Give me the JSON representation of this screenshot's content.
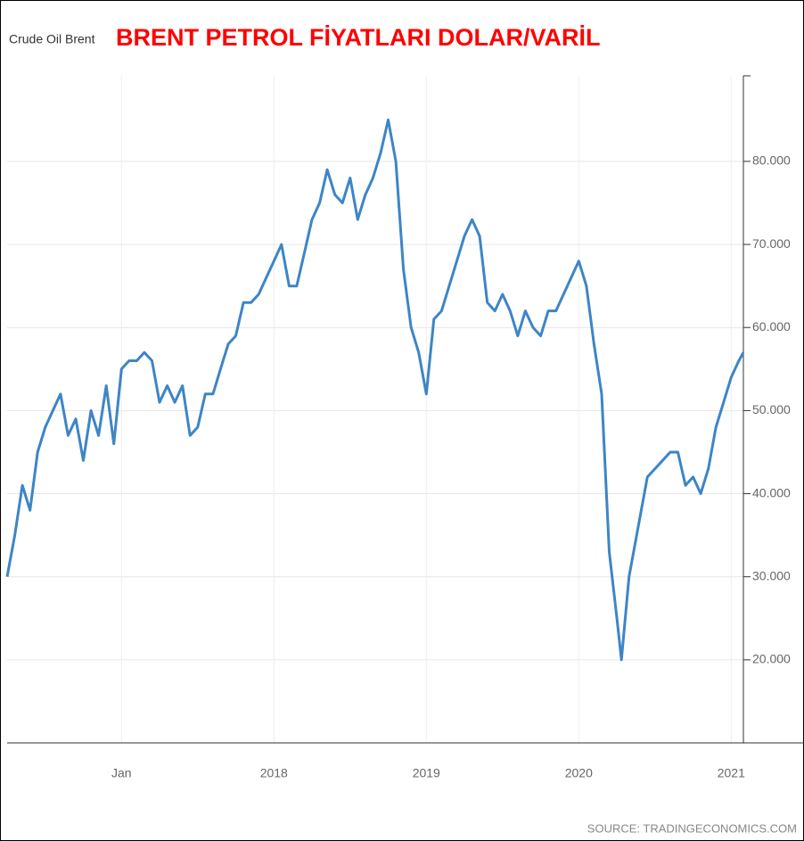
{
  "chart_data": {
    "type": "line",
    "subtitle": "Crude Oil Brent",
    "title": "BRENT PETROL FİYATLARI DOLAR/VARİL",
    "source": "SOURCE: TRADINGECONOMICS.COM",
    "x": [
      2016.25,
      2016.3,
      2016.35,
      2016.4,
      2016.45,
      2016.5,
      2016.55,
      2016.6,
      2016.65,
      2016.7,
      2016.75,
      2016.8,
      2016.85,
      2016.9,
      2016.95,
      2017.0,
      2017.05,
      2017.1,
      2017.15,
      2017.2,
      2017.25,
      2017.3,
      2017.35,
      2017.4,
      2017.45,
      2017.5,
      2017.55,
      2017.6,
      2017.65,
      2017.7,
      2017.75,
      2017.8,
      2017.85,
      2017.9,
      2017.95,
      2018.0,
      2018.05,
      2018.1,
      2018.15,
      2018.2,
      2018.25,
      2018.3,
      2018.35,
      2018.4,
      2018.45,
      2018.5,
      2018.55,
      2018.6,
      2018.65,
      2018.7,
      2018.75,
      2018.8,
      2018.85,
      2018.9,
      2018.95,
      2019.0,
      2019.05,
      2019.1,
      2019.15,
      2019.2,
      2019.25,
      2019.3,
      2019.35,
      2019.4,
      2019.45,
      2019.5,
      2019.55,
      2019.6,
      2019.65,
      2019.7,
      2019.75,
      2019.8,
      2019.85,
      2019.9,
      2019.95,
      2020.0,
      2020.05,
      2020.1,
      2020.15,
      2020.2,
      2020.25,
      2020.28,
      2020.33,
      2020.4,
      2020.45,
      2020.5,
      2020.55,
      2020.6,
      2020.65,
      2020.7,
      2020.75,
      2020.8,
      2020.85,
      2020.9,
      2020.95,
      2021.0,
      2021.05,
      2021.08
    ],
    "series": [
      {
        "name": "Crude Oil Brent",
        "color": "#3d85c6",
        "values": [
          30,
          35,
          41,
          38,
          45,
          48,
          50,
          52,
          47,
          49,
          44,
          50,
          47,
          53,
          46,
          55,
          56,
          56,
          57,
          56,
          51,
          53,
          51,
          53,
          47,
          48,
          52,
          52,
          55,
          58,
          59,
          63,
          63,
          64,
          66,
          68,
          70,
          65,
          65,
          69,
          73,
          75,
          79,
          76,
          75,
          78,
          73,
          76,
          78,
          81,
          85,
          80,
          67,
          60,
          57,
          52,
          61,
          62,
          65,
          68,
          71,
          73,
          71,
          63,
          62,
          64,
          62,
          59,
          62,
          60,
          59,
          62,
          62,
          64,
          66,
          68,
          65,
          58,
          52,
          33,
          25,
          20,
          30,
          37,
          42,
          43,
          44,
          45,
          45,
          41,
          42,
          40,
          43,
          48,
          51,
          54,
          56,
          57
        ]
      }
    ],
    "xlim": [
      2016.25,
      2021.08
    ],
    "xticks": [
      {
        "value": 2017,
        "label": "Jan"
      },
      2018,
      2019,
      2020,
      2021
    ],
    "ylim": [
      10,
      90.3
    ],
    "yticks": [
      {
        "value": 20,
        "label": "20.000"
      },
      {
        "value": 30,
        "label": "30.000"
      },
      {
        "value": 40,
        "label": "40.000"
      },
      {
        "value": 50,
        "label": "50.000"
      },
      {
        "value": 60,
        "label": "60.000"
      },
      {
        "value": 70,
        "label": "70.000"
      },
      {
        "value": 80,
        "label": "80.000"
      }
    ],
    "grid": true
  }
}
